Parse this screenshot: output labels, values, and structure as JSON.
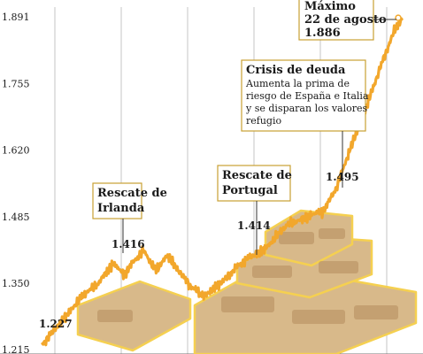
{
  "chart_data": {
    "type": "line",
    "title": "",
    "xlabel": "",
    "ylabel": "",
    "ylim": [
      1215,
      1900
    ],
    "yticks": [
      {
        "value": 1891,
        "label": "1.891"
      },
      {
        "value": 1755,
        "label": "1.755"
      },
      {
        "value": 1620,
        "label": "1.620"
      },
      {
        "value": 1485,
        "label": "1.485"
      },
      {
        "value": 1350,
        "label": "1.350"
      },
      {
        "value": 1215,
        "label": "1.215"
      }
    ],
    "grid": "vertical",
    "colors": {
      "line": "#f2a72c",
      "grid": "#c4c4c4",
      "box_border": "#c9a032",
      "text": "#1a1a1a"
    },
    "series": [
      {
        "values": [
          1227,
          1232,
          1238,
          1245,
          1252,
          1259,
          1266,
          1272,
          1280,
          1287,
          1294,
          1300,
          1306,
          1312,
          1318,
          1324,
          1330,
          1334,
          1338,
          1342,
          1348,
          1355,
          1362,
          1370,
          1376,
          1383,
          1388,
          1384,
          1378,
          1372,
          1366,
          1375,
          1385,
          1392,
          1398,
          1404,
          1410,
          1416,
          1408,
          1398,
          1388,
          1380,
          1376,
          1385,
          1394,
          1402,
          1408,
          1400,
          1390,
          1382,
          1375,
          1368,
          1360,
          1352,
          1346,
          1342,
          1338,
          1334,
          1330,
          1328,
          1326,
          1330,
          1334,
          1338,
          1342,
          1346,
          1352,
          1358,
          1364,
          1370,
          1376,
          1381,
          1386,
          1390,
          1394,
          1398,
          1401,
          1404,
          1407,
          1410,
          1414,
          1418,
          1423,
          1428,
          1433,
          1439,
          1445,
          1451,
          1457,
          1462,
          1467,
          1471,
          1474,
          1476,
          1478,
          1480,
          1482,
          1484,
          1486,
          1488,
          1490,
          1492,
          1494,
          1495,
          1505,
          1515,
          1525,
          1535,
          1545,
          1560,
          1575,
          1590,
          1605,
          1620,
          1635,
          1650,
          1665,
          1680,
          1695,
          1710,
          1725,
          1740,
          1755,
          1770,
          1785,
          1800,
          1815,
          1830,
          1845,
          1860,
          1872,
          1880,
          1886
        ]
      }
    ],
    "annotations": [
      {
        "id": "irlanda",
        "title_lines": [
          "Rescate de",
          "Irlanda"
        ],
        "value_label": "1.416"
      },
      {
        "id": "portugal",
        "title_lines": [
          "Rescate de",
          "Portugal"
        ],
        "value_label": "1.414"
      },
      {
        "id": "crisis",
        "title_lines": [
          "Crisis de deuda"
        ],
        "body_lines": [
          "Aumenta la prima de",
          "riesgo de España e Italia",
          "y se disparan los valores",
          "refugio"
        ],
        "value_label": "1.495"
      },
      {
        "id": "maximo",
        "title_lines": [
          "Máximo",
          "22 de agosto",
          "1.886"
        ]
      },
      {
        "id": "start",
        "value_label": "1.227"
      }
    ]
  }
}
